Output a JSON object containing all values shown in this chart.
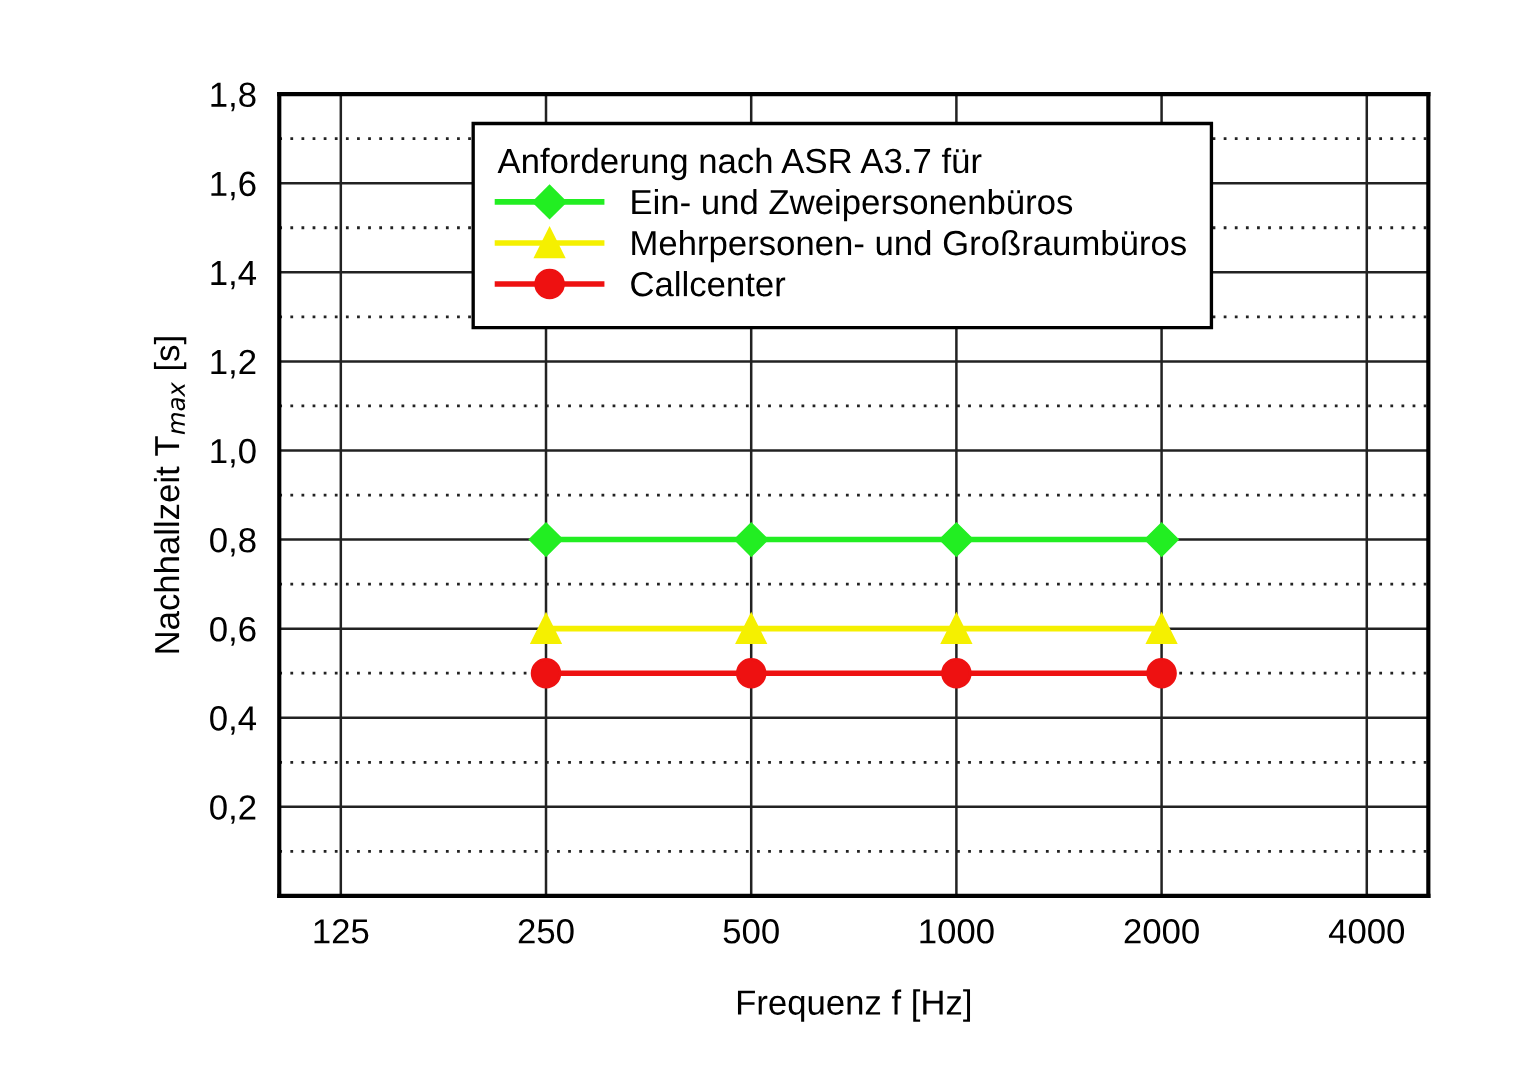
{
  "chart_data": {
    "type": "line",
    "xlabel": "Frequenz f [Hz]",
    "ylabel": "Nachhallzeit T$_{max}$ [s]",
    "legend_title": "Anforderung nach ASR A3.7 für",
    "categories": [
      "125",
      "250",
      "500",
      "1000",
      "2000",
      "4000"
    ],
    "series": [
      {
        "name": "Ein- und Zweipersonenbüros",
        "color": "#22ee22",
        "marker": "diamond",
        "values": [
          null,
          0.8,
          0.8,
          0.8,
          0.8,
          null
        ]
      },
      {
        "name": "Mehrpersonen- und Großraumbüros",
        "color": "#f5f000",
        "marker": "triangle",
        "values": [
          null,
          0.6,
          0.6,
          0.6,
          0.6,
          null
        ]
      },
      {
        "name": "Callcenter",
        "color": "#ee1111",
        "marker": "circle",
        "values": [
          null,
          0.5,
          0.5,
          0.5,
          0.5,
          null
        ]
      }
    ],
    "ylim": [
      0,
      1.8
    ],
    "yticks": [
      {
        "value": 0.1,
        "label": null
      },
      {
        "value": 0.2,
        "label": "0,2"
      },
      {
        "value": 0.3,
        "label": null
      },
      {
        "value": 0.4,
        "label": "0,4"
      },
      {
        "value": 0.5,
        "label": null
      },
      {
        "value": 0.6,
        "label": "0,6"
      },
      {
        "value": 0.7,
        "label": null
      },
      {
        "value": 0.8,
        "label": "0,8"
      },
      {
        "value": 0.9,
        "label": null
      },
      {
        "value": 1.0,
        "label": "1,0"
      },
      {
        "value": 1.1,
        "label": null
      },
      {
        "value": 1.2,
        "label": "1,2"
      },
      {
        "value": 1.3,
        "label": null
      },
      {
        "value": 1.4,
        "label": "1,4"
      },
      {
        "value": 1.5,
        "label": null
      },
      {
        "value": 1.6,
        "label": "1,6"
      },
      {
        "value": 1.7,
        "label": null
      },
      {
        "value": 1.8,
        "label": "1,8"
      }
    ],
    "grid": true,
    "legend": "top",
    "line_style": "solid"
  }
}
